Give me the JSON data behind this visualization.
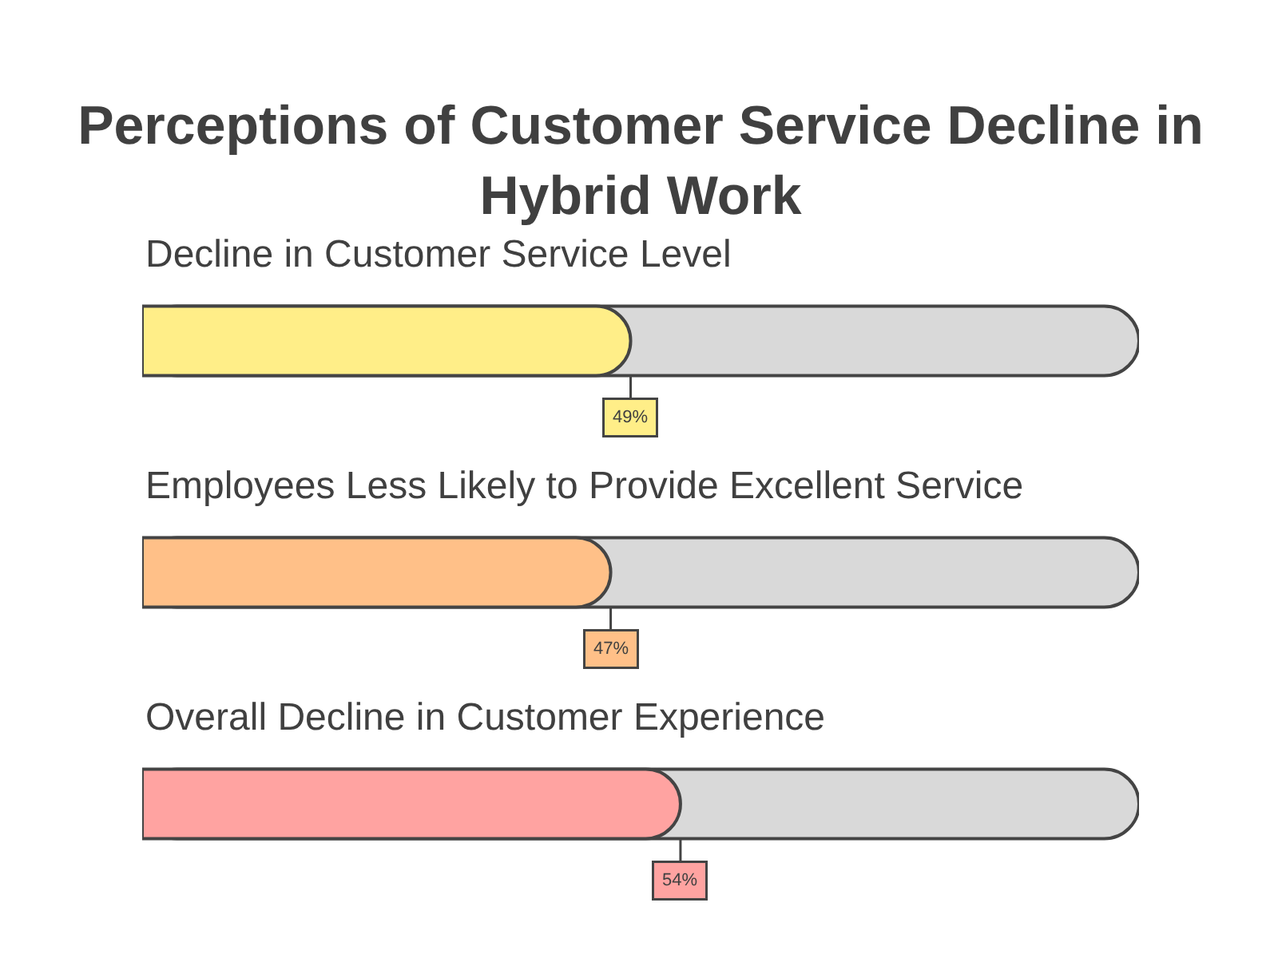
{
  "chart_data": {
    "type": "bar",
    "orientation": "horizontal",
    "title": "Perceptions of Customer Service Decline in Hybrid Work",
    "categories": [
      "Decline in Customer Service Level",
      "Employees Less Likely to Provide Excellent Service",
      "Overall Decline in Customer Experience"
    ],
    "values": [
      49,
      47,
      54
    ],
    "colors": [
      "#ffee88",
      "#ffc088",
      "#ffa3a1"
    ],
    "value_labels": [
      "49%",
      "47%",
      "54%"
    ],
    "xlim": [
      0,
      100
    ],
    "tick_labels": "y"
  }
}
